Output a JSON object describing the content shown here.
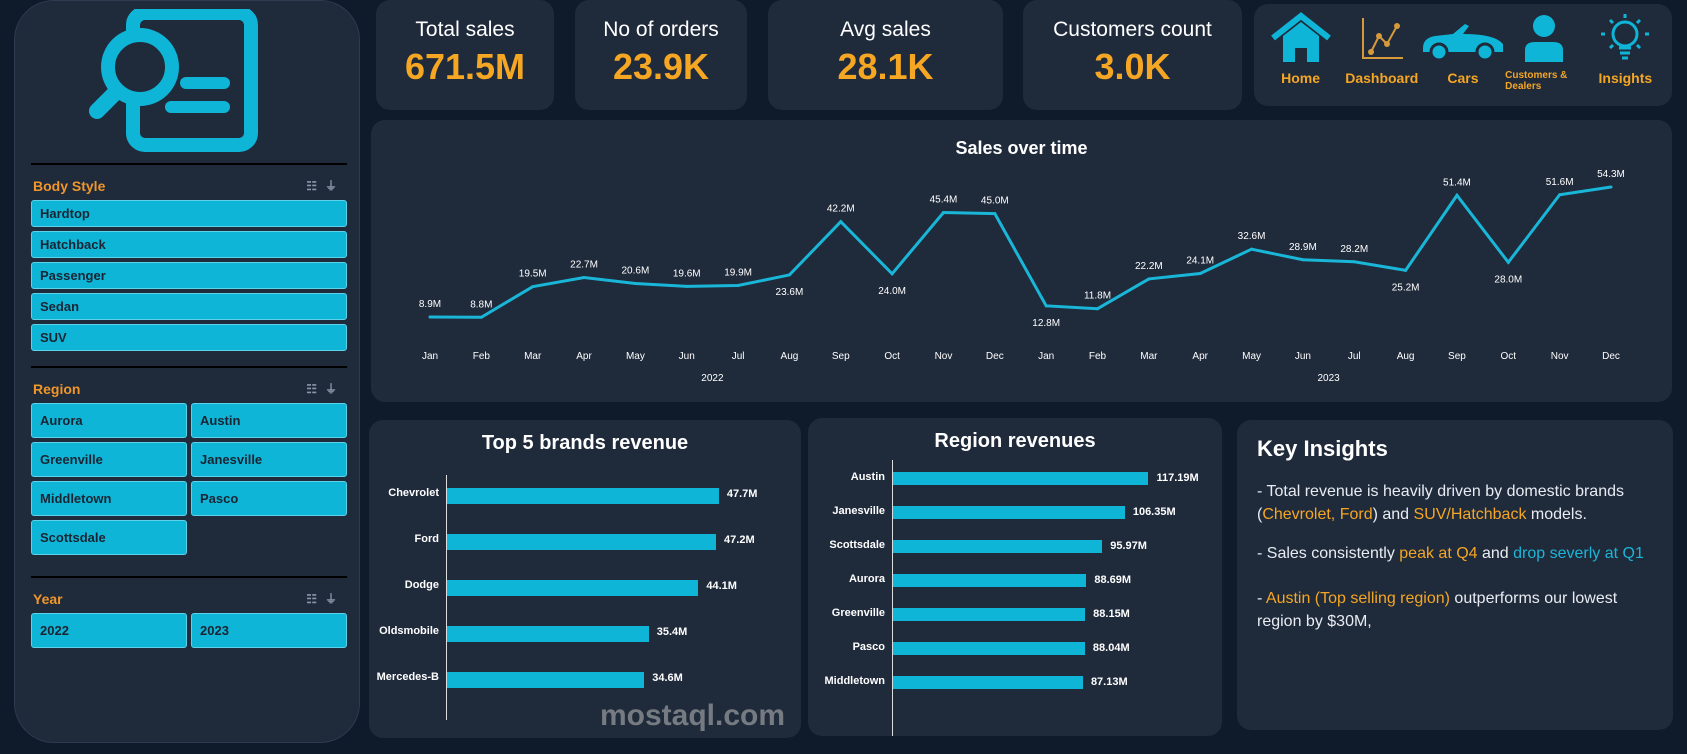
{
  "filters": {
    "body_style": {
      "title": "Body Style",
      "items": [
        "Hardtop",
        "Hatchback",
        "Passenger",
        "Sedan",
        "SUV"
      ]
    },
    "region": {
      "title": "Region",
      "items": [
        "Aurora",
        "Austin",
        "Greenville",
        "Janesville",
        "Middletown",
        "Pasco",
        "Scottsdale"
      ]
    },
    "year": {
      "title": "Year",
      "items": [
        "2022",
        "2023"
      ]
    }
  },
  "kpis": [
    {
      "label": "Total sales",
      "value": "671.5M"
    },
    {
      "label": "No of orders",
      "value": "23.9K"
    },
    {
      "label": "Avg sales",
      "value": "28.1K"
    },
    {
      "label": "Customers count",
      "value": "3.0K"
    }
  ],
  "nav": [
    {
      "label": "Home",
      "icon": "home-icon"
    },
    {
      "label": "Dashboard",
      "icon": "line-chart-icon"
    },
    {
      "label": "Cars",
      "icon": "car-icon"
    },
    {
      "label": "Customers & Dealers",
      "icon": "person-icon"
    },
    {
      "label": "Insights",
      "icon": "lightbulb-icon"
    }
  ],
  "colors": {
    "accent": "#0fb5d6",
    "highlight": "#f5a623",
    "panel": "#1f2a3b",
    "background": "#0f1b2b"
  },
  "chart_data": [
    {
      "type": "line",
      "title": "Sales over time",
      "years": [
        "2022",
        "2023"
      ],
      "categories": [
        "Jan",
        "Feb",
        "Mar",
        "Apr",
        "May",
        "Jun",
        "Jul",
        "Aug",
        "Sep",
        "Oct",
        "Nov",
        "Dec",
        "Jan",
        "Feb",
        "Mar",
        "Apr",
        "May",
        "Jun",
        "Jul",
        "Aug",
        "Sep",
        "Oct",
        "Nov",
        "Dec"
      ],
      "values": [
        8.9,
        8.8,
        19.5,
        22.7,
        20.6,
        19.6,
        19.9,
        23.6,
        42.2,
        24.0,
        45.4,
        45.0,
        12.8,
        11.8,
        22.2,
        24.1,
        32.6,
        28.9,
        28.2,
        25.2,
        51.4,
        28.0,
        51.6,
        54.3
      ],
      "labels": [
        "8.9M",
        "8.8M",
        "19.5M",
        "22.7M",
        "20.6M",
        "19.6M",
        "19.9M",
        "23.6M",
        "42.2M",
        "24.0M",
        "45.4M",
        "45.0M",
        "12.8M",
        "11.8M",
        "22.2M",
        "24.1M",
        "32.6M",
        "28.9M",
        "28.2M",
        "25.2M",
        "51.4M",
        "28.0M",
        "51.6M",
        "54.3M"
      ],
      "grid": false
    },
    {
      "type": "bar",
      "title": "Top 5 brands revenue",
      "categories": [
        "Chevrolet",
        "Ford",
        "Dodge",
        "Oldsmobile",
        "Mercedes-B"
      ],
      "values": [
        47.7,
        47.2,
        44.1,
        35.4,
        34.6
      ],
      "labels": [
        "47.7M",
        "47.2M",
        "44.1M",
        "35.4M",
        "34.6M"
      ]
    },
    {
      "type": "bar",
      "title": "Region revenues",
      "categories": [
        "Austin",
        "Janesville",
        "Scottsdale",
        "Aurora",
        "Greenville",
        "Pasco",
        "Middletown"
      ],
      "values": [
        117.19,
        106.35,
        95.97,
        88.69,
        88.15,
        88.04,
        87.13
      ],
      "labels": [
        "117.19M",
        "106.35M",
        "95.97M",
        "88.69M",
        "88.15M",
        "88.04M",
        "87.13M"
      ]
    }
  ],
  "insights": {
    "title": "Key Insights",
    "p1": [
      "- Total revenue is heavily driven by domestic brands (",
      "Chevrolet, Ford",
      ") and ",
      "SUV/Hatchback",
      " models."
    ],
    "p2": [
      "- Sales consistently ",
      "peak at Q4",
      " and ",
      "drop severly at Q1"
    ],
    "p3": [
      "- ",
      "Austin (Top selling region)",
      " outperforms our lowest region by $30M,"
    ]
  },
  "watermark": "mostaql.com"
}
